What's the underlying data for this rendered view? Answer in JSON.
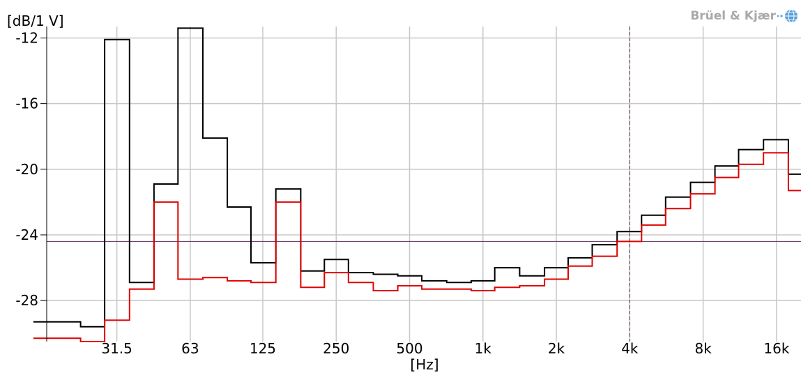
{
  "chart_data": {
    "type": "line",
    "step": true,
    "ylabel": "[dB/1 V]",
    "xlabel": "[Hz]",
    "ylim": [
      -30.5,
      -11.3
    ],
    "yticks": [
      -12,
      -16,
      -20,
      -24,
      -28
    ],
    "y_tick_labels": [
      "-12",
      "-16",
      "-20",
      "-24",
      "-28"
    ],
    "x_scale": "log",
    "xlim": [
      16.24,
      20159
    ],
    "xticks": [
      31.5,
      63,
      125,
      250,
      500,
      1000,
      2000,
      4000,
      8000,
      16000
    ],
    "x_tick_labels": [
      "31.5",
      "63",
      "125",
      "250",
      "500",
      "1k",
      "2k",
      "4k",
      "8k",
      "16k"
    ],
    "bands": [
      16,
      20,
      25,
      31.5,
      40,
      50,
      63,
      80,
      100,
      125,
      160,
      200,
      250,
      315,
      400,
      500,
      630,
      800,
      1000,
      1250,
      1600,
      2000,
      2500,
      3150,
      4000,
      5000,
      6300,
      8000,
      10000,
      12500,
      16000,
      20000
    ],
    "series": [
      {
        "color": "#000000",
        "values": [
          -29.3,
          -29.3,
          -29.6,
          -12.1,
          -26.9,
          -20.9,
          -11.4,
          -18.1,
          -22.3,
          -25.7,
          -21.2,
          -26.2,
          -25.5,
          -26.3,
          -26.4,
          -26.5,
          -26.8,
          -26.9,
          -26.8,
          -26.0,
          -26.5,
          -26.0,
          -25.4,
          -24.6,
          -23.8,
          -22.8,
          -21.7,
          -20.8,
          -19.8,
          -18.8,
          -18.2,
          -20.3
        ]
      },
      {
        "color": "#e00000",
        "values": [
          -30.3,
          -30.3,
          -30.5,
          -29.2,
          -27.3,
          -22.0,
          -26.7,
          -26.6,
          -26.8,
          -26.9,
          -22.0,
          -27.2,
          -26.3,
          -26.9,
          -27.4,
          -27.1,
          -27.3,
          -27.3,
          -27.4,
          -27.2,
          -27.1,
          -26.7,
          -25.9,
          -25.3,
          -24.4,
          -23.4,
          -22.4,
          -21.5,
          -20.5,
          -19.7,
          -19.0,
          -21.3
        ]
      }
    ],
    "cursor": {
      "x": 4000,
      "y": -24.4,
      "color": "#5a2a5a"
    },
    "grid": true,
    "legend": "none"
  },
  "brand": {
    "name": "Brüel & Kjær"
  }
}
